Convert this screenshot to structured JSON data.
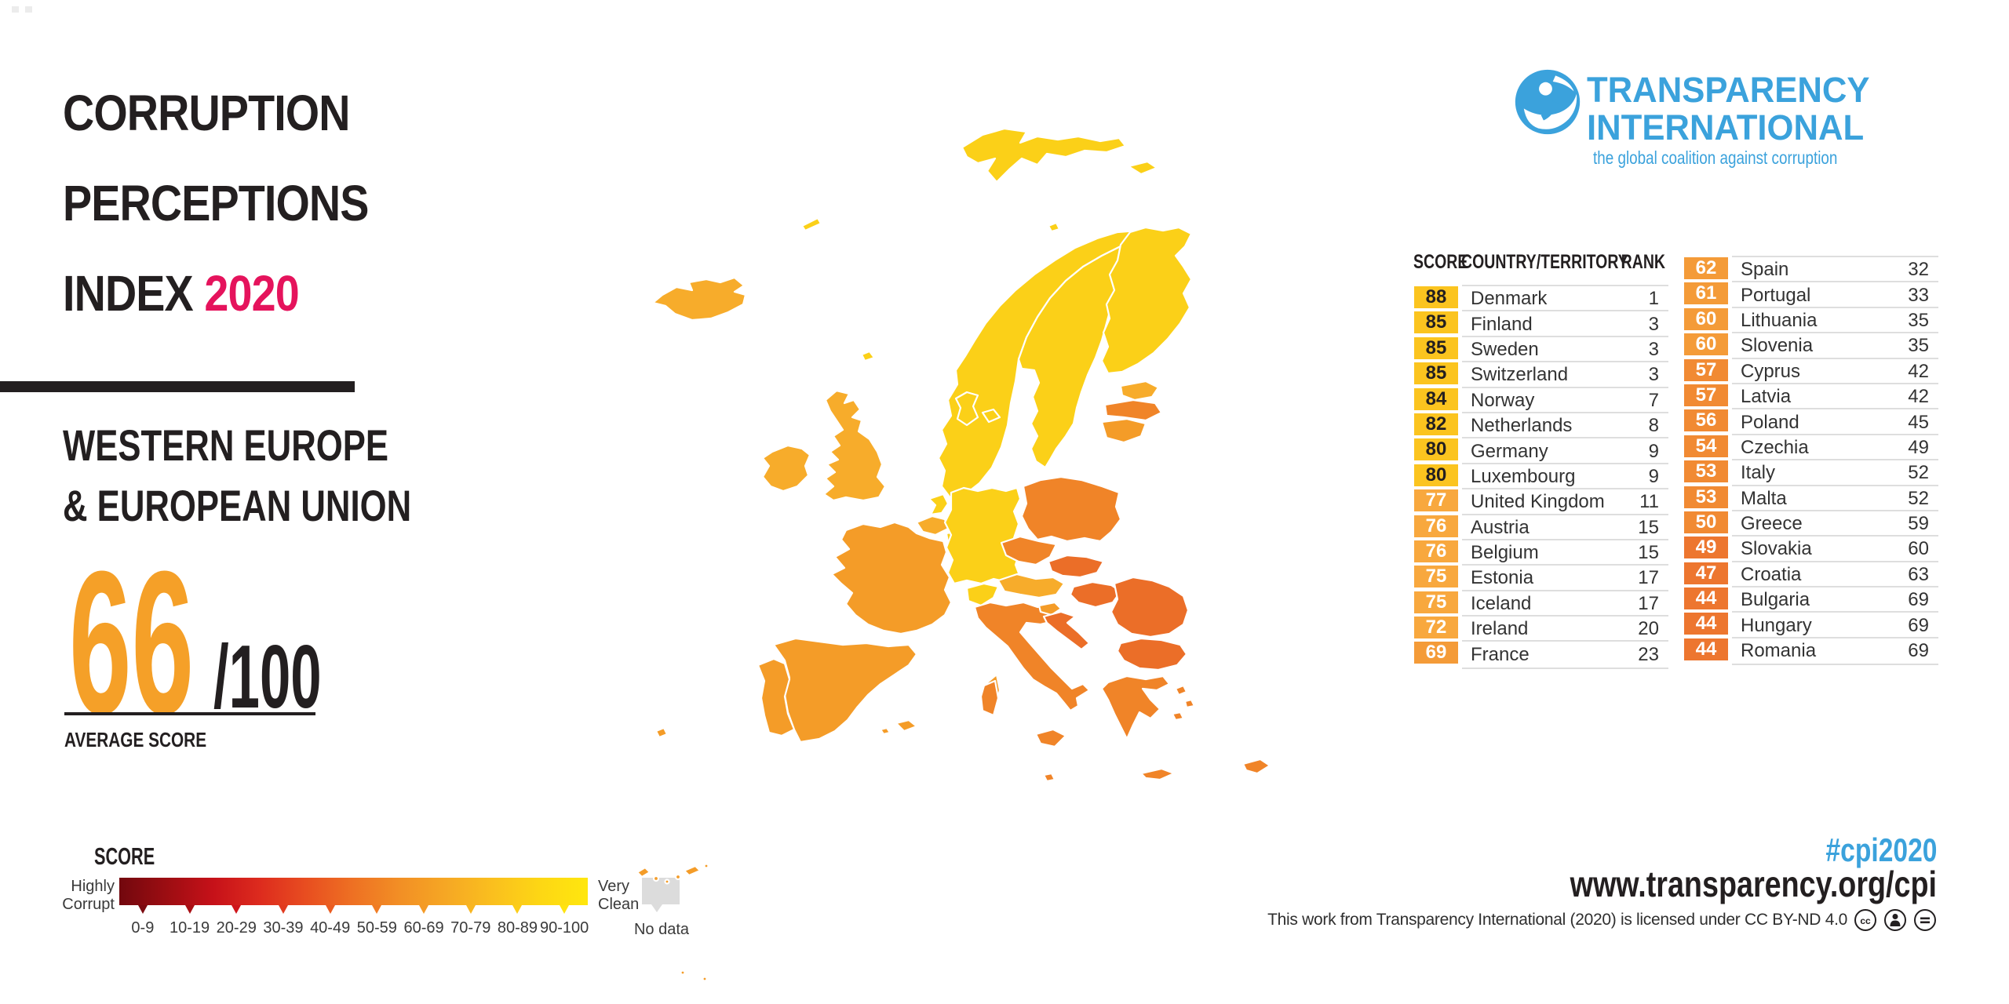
{
  "header": {
    "title_line1": "CORRUPTION",
    "title_line2": "PERCEPTIONS",
    "title_line3": "INDEX",
    "title_year": "2020",
    "title_color": "#231F20",
    "year_color": "#E5135C",
    "region_line1": "WESTERN EUROPE",
    "region_line2": "& EUROPEAN UNION",
    "average_score": "66",
    "denominator": "/100",
    "average_label": "AVERAGE SCORE",
    "score_color": "#F5A028"
  },
  "legend": {
    "title": "SCORE",
    "left_label": "Highly Corrupt",
    "right_label": "Very Clean",
    "no_data_label": "No data",
    "no_data_color": "#DCDCDC",
    "ranges": [
      "0-9",
      "10-19",
      "20-29",
      "30-39",
      "40-49",
      "50-59",
      "60-69",
      "70-79",
      "80-89",
      "90-100"
    ],
    "tick_colors": [
      "#7C0A10",
      "#A80E13",
      "#CF151B",
      "#E13A1F",
      "#EA5C21",
      "#F07C24",
      "#F49A26",
      "#F8B621",
      "#FCCD18",
      "#FFE30F"
    ]
  },
  "logo": {
    "line1": "TRANSPARENCY",
    "line2": "INTERNATIONAL",
    "tagline": "the global coalition against corruption",
    "color": "#3BA2DC"
  },
  "table": {
    "headers": {
      "score": "SCORE",
      "country": "COUNTRY/TERRITORY",
      "rank": "RANK"
    },
    "score_tiers": [
      {
        "min": 80,
        "bg": "#FBC41F",
        "fg": "#231F20"
      },
      {
        "min": 70,
        "bg": "#F8A83E",
        "fg": "#FFFFFF"
      },
      {
        "min": 60,
        "bg": "#F49B38",
        "fg": "#FFFFFF"
      },
      {
        "min": 50,
        "bg": "#F18A33",
        "fg": "#FFFFFF"
      },
      {
        "min": 0,
        "bg": "#ED762F",
        "fg": "#FFFFFF"
      }
    ],
    "left_rows": [
      {
        "score": 88,
        "country": "Denmark",
        "rank": 1
      },
      {
        "score": 85,
        "country": "Finland",
        "rank": 3
      },
      {
        "score": 85,
        "country": "Sweden",
        "rank": 3
      },
      {
        "score": 85,
        "country": "Switzerland",
        "rank": 3
      },
      {
        "score": 84,
        "country": "Norway",
        "rank": 7
      },
      {
        "score": 82,
        "country": "Netherlands",
        "rank": 8
      },
      {
        "score": 80,
        "country": "Germany",
        "rank": 9
      },
      {
        "score": 80,
        "country": "Luxembourg",
        "rank": 9
      },
      {
        "score": 77,
        "country": "United Kingdom",
        "rank": 11
      },
      {
        "score": 76,
        "country": "Austria",
        "rank": 15
      },
      {
        "score": 76,
        "country": "Belgium",
        "rank": 15
      },
      {
        "score": 75,
        "country": "Estonia",
        "rank": 17
      },
      {
        "score": 75,
        "country": "Iceland",
        "rank": 17
      },
      {
        "score": 72,
        "country": "Ireland",
        "rank": 20
      },
      {
        "score": 69,
        "country": "France",
        "rank": 23
      }
    ],
    "right_rows": [
      {
        "score": 62,
        "country": "Spain",
        "rank": 32
      },
      {
        "score": 61,
        "country": "Portugal",
        "rank": 33
      },
      {
        "score": 60,
        "country": "Lithuania",
        "rank": 35
      },
      {
        "score": 60,
        "country": "Slovenia",
        "rank": 35
      },
      {
        "score": 57,
        "country": "Cyprus",
        "rank": 42
      },
      {
        "score": 57,
        "country": "Latvia",
        "rank": 42
      },
      {
        "score": 56,
        "country": "Poland",
        "rank": 45
      },
      {
        "score": 54,
        "country": "Czechia",
        "rank": 49
      },
      {
        "score": 53,
        "country": "Italy",
        "rank": 52
      },
      {
        "score": 53,
        "country": "Malta",
        "rank": 52
      },
      {
        "score": 50,
        "country": "Greece",
        "rank": 59
      },
      {
        "score": 49,
        "country": "Slovakia",
        "rank": 60
      },
      {
        "score": 47,
        "country": "Croatia",
        "rank": 63
      },
      {
        "score": 44,
        "country": "Bulgaria",
        "rank": 69
      },
      {
        "score": 44,
        "country": "Hungary",
        "rank": 69
      },
      {
        "score": 44,
        "country": "Romania",
        "rank": 69
      }
    ]
  },
  "map": {
    "tier_fills": {
      "80": "#FBD018",
      "70": "#F7AC2B",
      "60": "#F49C28",
      "50": "#F08428",
      "40": "#EB6E28"
    },
    "countries": [
      {
        "id": "iceland",
        "name": "Iceland",
        "score": 75
      },
      {
        "id": "norway",
        "name": "Norway",
        "score": 84
      },
      {
        "id": "sweden",
        "name": "Sweden",
        "score": 85
      },
      {
        "id": "finland",
        "name": "Finland",
        "score": 85
      },
      {
        "id": "denmark",
        "name": "Denmark",
        "score": 88
      },
      {
        "id": "estonia",
        "name": "Estonia",
        "score": 75
      },
      {
        "id": "latvia",
        "name": "Latvia",
        "score": 57
      },
      {
        "id": "lithuania",
        "name": "Lithuania",
        "score": 60
      },
      {
        "id": "uk",
        "name": "United Kingdom",
        "score": 77
      },
      {
        "id": "ireland",
        "name": "Ireland",
        "score": 72
      },
      {
        "id": "netherlands",
        "name": "Netherlands",
        "score": 82
      },
      {
        "id": "belgium",
        "name": "Belgium",
        "score": 76
      },
      {
        "id": "luxembourg",
        "name": "Luxembourg",
        "score": 80
      },
      {
        "id": "germany",
        "name": "Germany",
        "score": 80
      },
      {
        "id": "poland",
        "name": "Poland",
        "score": 56
      },
      {
        "id": "czechia",
        "name": "Czechia",
        "score": 54
      },
      {
        "id": "slovakia",
        "name": "Slovakia",
        "score": 49
      },
      {
        "id": "austria",
        "name": "Austria",
        "score": 76
      },
      {
        "id": "switzerland",
        "name": "Switzerland",
        "score": 85
      },
      {
        "id": "france",
        "name": "France",
        "score": 69
      },
      {
        "id": "spain",
        "name": "Spain",
        "score": 62
      },
      {
        "id": "portugal",
        "name": "Portugal",
        "score": 61
      },
      {
        "id": "italy",
        "name": "Italy",
        "score": 53
      },
      {
        "id": "slovenia",
        "name": "Slovenia",
        "score": 60
      },
      {
        "id": "croatia",
        "name": "Croatia",
        "score": 47
      },
      {
        "id": "hungary",
        "name": "Hungary",
        "score": 44
      },
      {
        "id": "romania",
        "name": "Romania",
        "score": 44
      },
      {
        "id": "bulgaria",
        "name": "Bulgaria",
        "score": 44
      },
      {
        "id": "greece",
        "name": "Greece",
        "score": 50
      },
      {
        "id": "cyprus",
        "name": "Cyprus",
        "score": 57
      },
      {
        "id": "malta",
        "name": "Malta",
        "score": 53
      }
    ]
  },
  "footer": {
    "hashtag": "#cpi2020",
    "hashtag_color": "#3BA2DC",
    "url": "www.transparency.org/cpi",
    "license": "This work from Transparency International (2020) is licensed under CC BY-ND 4.0"
  }
}
